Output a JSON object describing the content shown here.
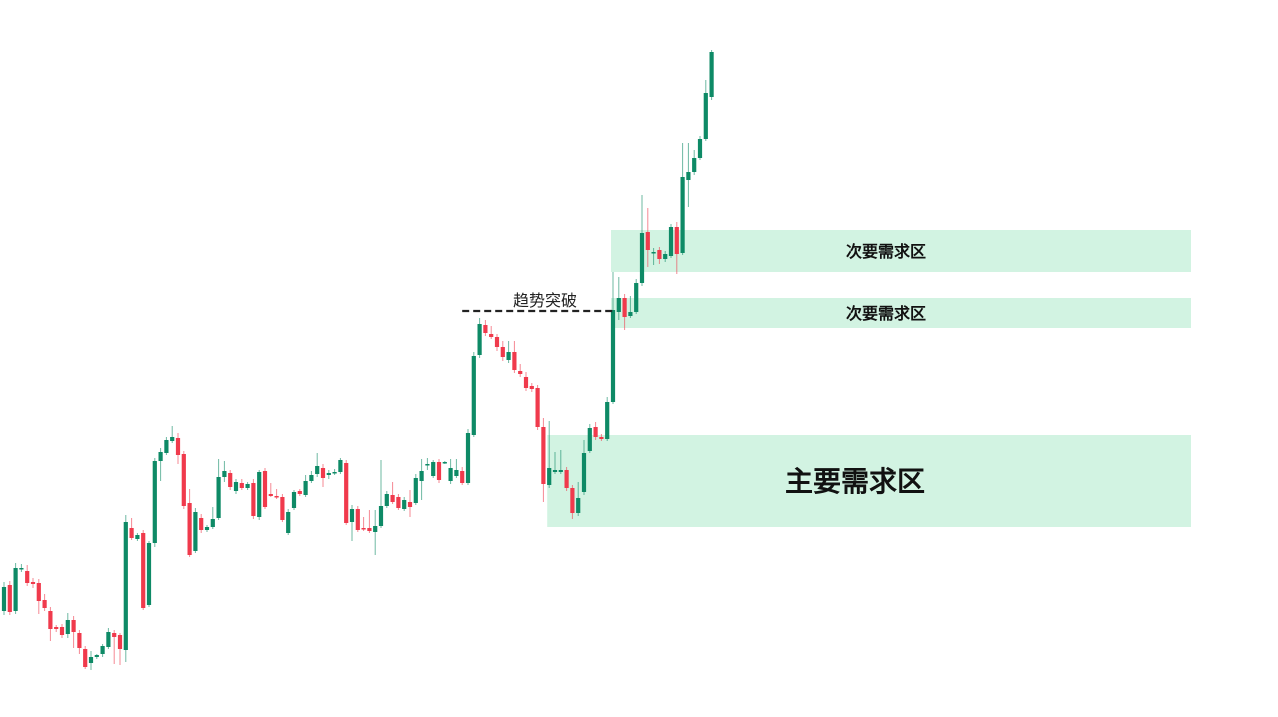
{
  "chart_data": {
    "type": "candlestick",
    "title": "",
    "xlabel": "",
    "ylabel": "",
    "grid": false,
    "colors": {
      "up": "#0e8a66",
      "down": "#f03a4c",
      "zone": "#d2f3e2",
      "breakout_line": "#222222"
    },
    "candles_format": [
      "open",
      "high",
      "low",
      "close"
    ],
    "candles": [
      [
        10.9,
        13.8,
        10.5,
        13.3
      ],
      [
        13.5,
        13.9,
        10.5,
        10.8
      ],
      [
        10.9,
        15.7,
        10.6,
        15.2
      ],
      [
        15.1,
        15.6,
        14.8,
        15.2
      ],
      [
        14.9,
        15.5,
        13.4,
        13.7
      ],
      [
        13.8,
        14.2,
        13.2,
        13.6
      ],
      [
        13.7,
        14.1,
        10.6,
        11.9
      ],
      [
        12.0,
        12.6,
        10.9,
        11.2
      ],
      [
        10.9,
        11.3,
        7.9,
        9.1
      ],
      [
        9.3,
        9.5,
        8.8,
        9.1
      ],
      [
        9.3,
        9.6,
        8.2,
        8.5
      ],
      [
        8.6,
        10.7,
        8.2,
        10.0
      ],
      [
        10.0,
        10.4,
        7.2,
        8.8
      ],
      [
        8.7,
        9.0,
        6.6,
        7.2
      ],
      [
        7.1,
        7.4,
        5.1,
        5.3
      ],
      [
        5.7,
        6.9,
        5.0,
        6.3
      ],
      [
        6.3,
        6.6,
        6.1,
        6.5
      ],
      [
        6.6,
        7.6,
        6.3,
        7.4
      ],
      [
        7.3,
        9.2,
        7.1,
        8.8
      ],
      [
        8.7,
        9.0,
        5.6,
        8.3
      ],
      [
        8.5,
        8.7,
        5.5,
        7.1
      ],
      [
        7.0,
        20.5,
        5.8,
        19.8
      ],
      [
        19.2,
        20.2,
        18.0,
        18.2
      ],
      [
        18.1,
        18.7,
        17.9,
        18.5
      ],
      [
        18.7,
        19.0,
        11.0,
        11.2
      ],
      [
        11.5,
        17.9,
        11.3,
        17.7
      ],
      [
        17.7,
        26.2,
        17.3,
        25.9
      ],
      [
        25.9,
        27.2,
        23.9,
        26.8
      ],
      [
        26.7,
        28.3,
        26.5,
        28.0
      ],
      [
        27.9,
        29.4,
        27.7,
        28.3
      ],
      [
        28.2,
        28.7,
        25.6,
        26.5
      ],
      [
        26.6,
        26.9,
        21.1,
        21.4
      ],
      [
        21.7,
        23.1,
        16.3,
        16.5
      ],
      [
        16.9,
        21.2,
        16.7,
        20.8
      ],
      [
        20.2,
        20.6,
        18.7,
        19.0
      ],
      [
        19.0,
        19.5,
        18.8,
        19.3
      ],
      [
        19.3,
        21.3,
        19.1,
        20.1
      ],
      [
        20.2,
        26.1,
        20.0,
        24.3
      ],
      [
        24.3,
        25.9,
        23.8,
        24.9
      ],
      [
        24.7,
        25.0,
        23.0,
        23.3
      ],
      [
        22.9,
        24.1,
        22.6,
        23.8
      ],
      [
        23.7,
        24.1,
        23.0,
        23.2
      ],
      [
        23.2,
        23.8,
        23.0,
        23.6
      ],
      [
        23.7,
        24.1,
        20.1,
        20.4
      ],
      [
        20.3,
        25.0,
        20.0,
        24.8
      ],
      [
        24.9,
        25.2,
        21.1,
        21.3
      ],
      [
        22.6,
        23.7,
        22.3,
        22.4
      ],
      [
        22.4,
        23.1,
        22.1,
        22.3
      ],
      [
        22.3,
        22.6,
        19.8,
        20.0
      ],
      [
        18.7,
        21.1,
        18.5,
        20.8
      ],
      [
        21.2,
        23.0,
        21.0,
        22.8
      ],
      [
        22.9,
        23.1,
        22.4,
        22.6
      ],
      [
        22.5,
        24.5,
        22.3,
        23.9
      ],
      [
        23.9,
        24.9,
        23.7,
        24.5
      ],
      [
        24.6,
        26.7,
        24.3,
        25.4
      ],
      [
        25.2,
        25.6,
        23.3,
        24.2
      ],
      [
        24.5,
        25.0,
        24.1,
        24.7
      ],
      [
        24.7,
        25.1,
        24.5,
        24.8
      ],
      [
        24.8,
        26.2,
        24.6,
        26.0
      ],
      [
        25.7,
        26.0,
        19.5,
        19.7
      ],
      [
        19.8,
        21.5,
        17.9,
        21.1
      ],
      [
        21.1,
        21.4,
        18.8,
        19.0
      ],
      [
        19.2,
        20.3,
        18.9,
        19.1
      ],
      [
        19.2,
        21.0,
        18.7,
        18.9
      ],
      [
        18.8,
        21.0,
        16.5,
        19.4
      ],
      [
        19.4,
        26.0,
        19.2,
        21.4
      ],
      [
        21.4,
        22.9,
        21.2,
        22.6
      ],
      [
        22.5,
        23.8,
        21.6,
        21.8
      ],
      [
        22.3,
        22.6,
        21.0,
        21.2
      ],
      [
        21.1,
        22.3,
        20.9,
        22.0
      ],
      [
        21.8,
        23.0,
        20.3,
        21.3
      ],
      [
        21.7,
        24.6,
        21.5,
        24.2
      ],
      [
        23.9,
        26.1,
        22.0,
        24.9
      ],
      [
        25.5,
        26.2,
        25.0,
        25.6
      ],
      [
        24.4,
        26.0,
        24.2,
        25.8
      ],
      [
        25.8,
        26.1,
        23.7,
        24.0
      ],
      [
        25.7,
        25.9,
        25.6,
        25.8
      ],
      [
        23.9,
        26.1,
        23.6,
        25.2
      ],
      [
        24.4,
        26.1,
        24.2,
        25.0
      ],
      [
        24.9,
        25.3,
        23.5,
        23.7
      ],
      [
        23.7,
        29.1,
        23.5,
        28.7
      ],
      [
        28.5,
        36.8,
        28.3,
        36.4
      ],
      [
        36.5,
        40.2,
        36.2,
        39.6
      ],
      [
        39.5,
        40.0,
        38.4,
        38.7
      ],
      [
        38.6,
        39.4,
        38.1,
        38.3
      ],
      [
        38.3,
        38.6,
        36.9,
        37.3
      ],
      [
        37.3,
        37.9,
        35.9,
        36.3
      ],
      [
        36.0,
        37.9,
        35.7,
        36.8
      ],
      [
        36.8,
        37.9,
        34.7,
        35.0
      ],
      [
        34.9,
        35.6,
        34.3,
        34.6
      ],
      [
        34.3,
        34.8,
        32.9,
        33.2
      ],
      [
        33.4,
        33.7,
        32.8,
        33.1
      ],
      [
        33.2,
        33.5,
        29.0,
        29.3
      ],
      [
        29.3,
        30.2,
        21.8,
        23.6
      ],
      [
        23.5,
        29.9,
        23.2,
        25.2
      ],
      [
        24.8,
        26.8,
        24.6,
        25.0
      ],
      [
        24.8,
        27.0,
        24.6,
        25.0
      ],
      [
        25.0,
        25.3,
        22.9,
        23.2
      ],
      [
        23.2,
        23.5,
        20.1,
        20.7
      ],
      [
        20.7,
        23.8,
        20.4,
        22.2
      ],
      [
        22.8,
        28.0,
        22.5,
        26.7
      ],
      [
        26.9,
        29.6,
        26.7,
        29.2
      ],
      [
        29.3,
        29.8,
        28.0,
        28.3
      ],
      [
        28.3,
        28.6,
        27.9,
        28.1
      ],
      [
        28.1,
        32.3,
        27.9,
        31.8
      ],
      [
        31.8,
        44.8,
        31.6,
        41.0
      ],
      [
        40.8,
        44.3,
        40.0,
        42.2
      ],
      [
        42.2,
        42.6,
        39.0,
        40.3
      ],
      [
        40.4,
        42.4,
        40.2,
        40.8
      ],
      [
        40.8,
        44.1,
        40.6,
        43.7
      ],
      [
        43.7,
        52.5,
        43.4,
        48.7
      ],
      [
        48.8,
        51.2,
        45.3,
        47.0
      ],
      [
        46.7,
        47.2,
        45.5,
        46.8
      ],
      [
        47.0,
        47.3,
        45.6,
        46.1
      ],
      [
        46.1,
        46.9,
        45.8,
        46.6
      ],
      [
        46.4,
        49.6,
        46.2,
        49.3
      ],
      [
        49.3,
        49.8,
        44.6,
        46.6
      ],
      [
        46.7,
        57.7,
        46.5,
        54.3
      ],
      [
        54.0,
        57.7,
        51.3,
        54.8
      ],
      [
        54.8,
        57.0,
        54.5,
        56.2
      ],
      [
        56.2,
        58.4,
        56.0,
        58.1
      ],
      [
        58.1,
        64.0,
        57.9,
        62.7
      ],
      [
        62.3,
        67.0,
        62.0,
        66.8
      ]
    ],
    "zones": [
      {
        "label": "主要需求区",
        "price_low": 19.3,
        "price_high": 28.5,
        "start_index": 94
      },
      {
        "label": "次要需求区",
        "price_low": 39.2,
        "price_high": 42.2,
        "start_index": 105
      },
      {
        "label": "次要需求区",
        "price_low": 44.8,
        "price_high": 49.0,
        "start_index": 105
      }
    ],
    "breakout": {
      "label": "趋势突破",
      "price": 40.9,
      "start_index": 79,
      "end_index": 105
    }
  }
}
